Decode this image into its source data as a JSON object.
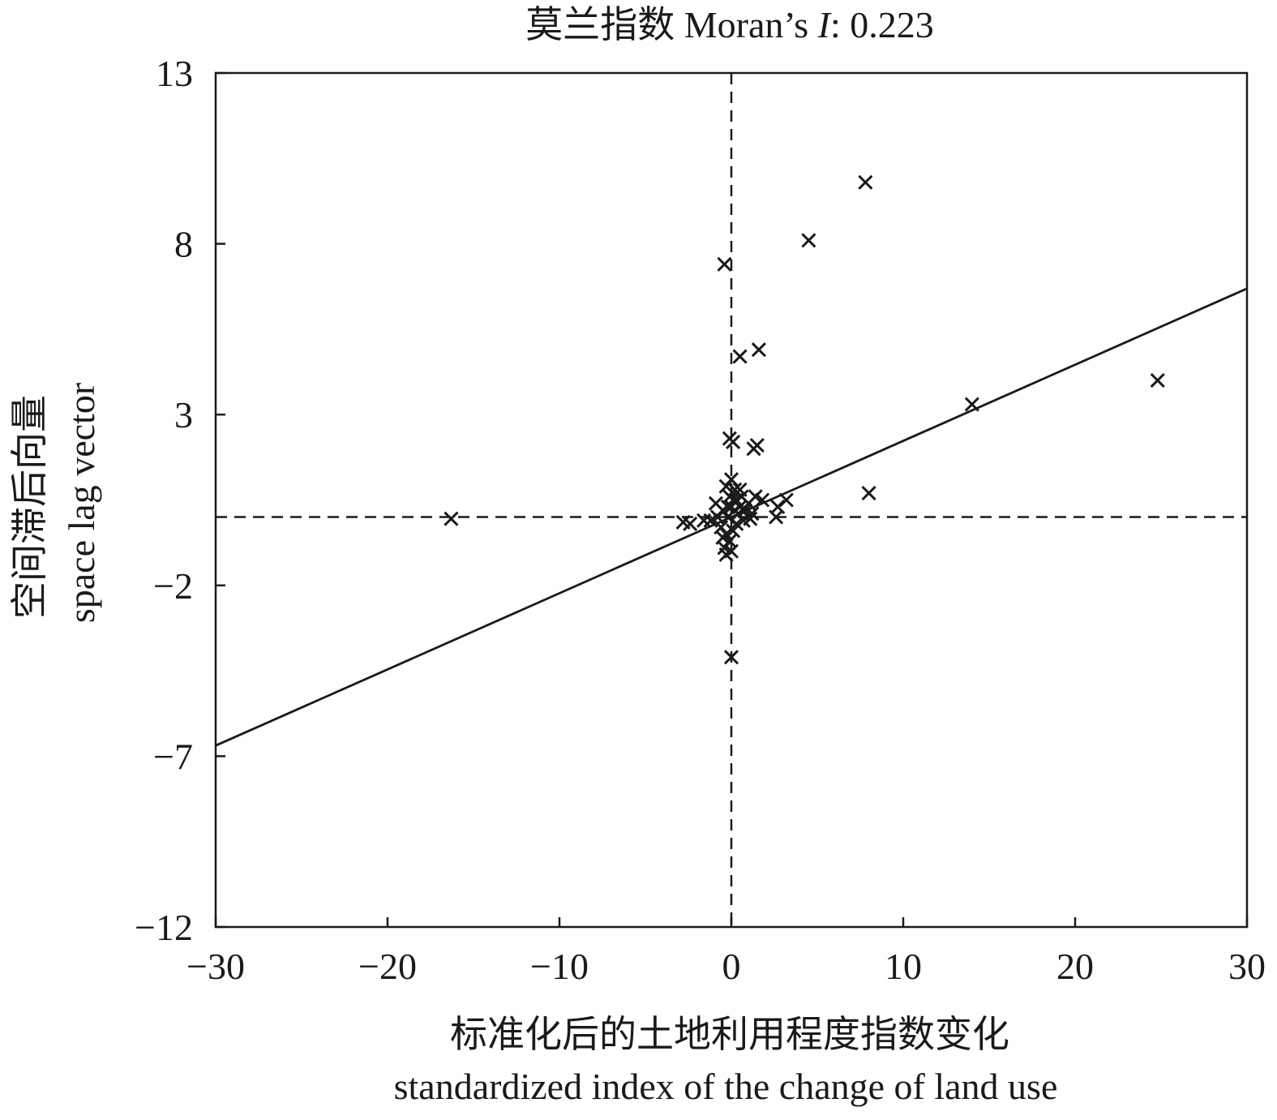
{
  "chart_data": {
    "type": "scatter",
    "title_prefix": "莫兰指数 Moran’s ",
    "title_italic": "I",
    "title_suffix": ": 0.223",
    "xlabel_cn": "标准化后的土地利用程度指数变化",
    "xlabel_en": "standardized index of the change of land use",
    "ylabel_cn": "空间滞后向量",
    "ylabel_en": "space lag vector",
    "xlim": [
      -30,
      30
    ],
    "ylim": [
      -12,
      13
    ],
    "x_ticks": [
      -30,
      -20,
      -10,
      0,
      10,
      20,
      30
    ],
    "x_tick_labels": [
      "−30",
      "−20",
      "−10",
      "0",
      "10",
      "20",
      "30"
    ],
    "y_ticks": [
      -12,
      -7,
      -2,
      3,
      8,
      13
    ],
    "y_tick_labels": [
      "−12",
      "−7",
      "−2",
      "3",
      "8",
      "13"
    ],
    "reference_lines": {
      "x": 0,
      "y": 0
    },
    "regression": {
      "slope": 0.223,
      "intercept": 0
    },
    "marker": "x",
    "color": "#1a1a1a",
    "points": [
      [
        7.8,
        9.8
      ],
      [
        4.5,
        8.1
      ],
      [
        -0.4,
        7.4
      ],
      [
        0.5,
        4.7
      ],
      [
        1.6,
        4.9
      ],
      [
        24.8,
        4.0
      ],
      [
        14.0,
        3.3
      ],
      [
        -0.1,
        2.3
      ],
      [
        0.1,
        2.2
      ],
      [
        1.5,
        2.1
      ],
      [
        1.3,
        2.0
      ],
      [
        8.0,
        0.7
      ],
      [
        -16.3,
        -0.05
      ],
      [
        0.0,
        -4.1
      ],
      [
        0.0,
        1.1
      ],
      [
        -0.3,
        0.9
      ],
      [
        0.2,
        0.8
      ],
      [
        0.5,
        0.8
      ],
      [
        -0.1,
        0.6
      ],
      [
        0.1,
        0.5
      ],
      [
        0.3,
        0.5
      ],
      [
        -0.2,
        0.3
      ],
      [
        0.6,
        0.6
      ],
      [
        1.0,
        0.4
      ],
      [
        1.4,
        0.6
      ],
      [
        1.8,
        0.5
      ],
      [
        2.7,
        0.3
      ],
      [
        3.2,
        0.5
      ],
      [
        2.6,
        0.0
      ],
      [
        1.2,
        0.1
      ],
      [
        0.8,
        0.2
      ],
      [
        0.4,
        0.1
      ],
      [
        -0.5,
        0.2
      ],
      [
        -0.8,
        0.0
      ],
      [
        -1.2,
        -0.1
      ],
      [
        -1.6,
        -0.1
      ],
      [
        -2.4,
        -0.2
      ],
      [
        -2.8,
        -0.15
      ],
      [
        -0.6,
        -0.3
      ],
      [
        -0.3,
        -0.5
      ],
      [
        -0.1,
        -0.7
      ],
      [
        -0.4,
        -0.9
      ],
      [
        0.1,
        -0.4
      ],
      [
        0.3,
        -0.2
      ],
      [
        -0.5,
        -0.6
      ],
      [
        0.0,
        -1.0
      ],
      [
        -0.3,
        -1.1
      ],
      [
        0.5,
        0.3
      ],
      [
        0.2,
        0.2
      ],
      [
        -0.2,
        0.0
      ],
      [
        0.0,
        0.3
      ],
      [
        0.7,
        -0.1
      ],
      [
        1.1,
        -0.05
      ],
      [
        -0.9,
        0.4
      ]
    ]
  }
}
